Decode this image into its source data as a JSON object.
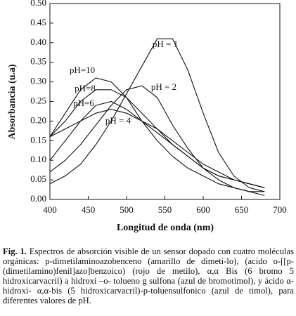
{
  "chart_data": {
    "type": "line",
    "x_label": "Longitud de onda (nm)",
    "y_label": "Absorbancia (u.a)",
    "x": [
      400,
      420,
      440,
      460,
      480,
      500,
      520,
      540,
      560,
      580,
      600,
      620,
      640,
      660,
      680
    ],
    "series": [
      {
        "name": "pH = 1",
        "color": "#111111",
        "values": [
          0.04,
          0.06,
          0.09,
          0.14,
          0.2,
          0.27,
          0.34,
          0.41,
          0.41,
          0.33,
          0.22,
          0.12,
          0.06,
          0.03,
          0.02
        ]
      },
      {
        "name": "pH = 2",
        "color": "#111111",
        "values": [
          0.07,
          0.1,
          0.14,
          0.19,
          0.24,
          0.28,
          0.29,
          0.26,
          0.19,
          0.13,
          0.08,
          0.05,
          0.03,
          0.02,
          0.01
        ]
      },
      {
        "name": "pH=10",
        "color": "#111111",
        "values": [
          0.16,
          0.22,
          0.28,
          0.31,
          0.3,
          0.26,
          0.2,
          0.15,
          0.11,
          0.08,
          0.06,
          0.04,
          0.03,
          0.02,
          0.02
        ]
      },
      {
        "name": "pH=8",
        "color": "#111111",
        "values": [
          0.16,
          0.2,
          0.25,
          0.28,
          0.28,
          0.26,
          0.22,
          0.18,
          0.14,
          0.11,
          0.08,
          0.06,
          0.05,
          0.04,
          0.03
        ]
      },
      {
        "name": "pH=6",
        "color": "#111111",
        "values": [
          0.1,
          0.15,
          0.2,
          0.24,
          0.25,
          0.23,
          0.2,
          0.17,
          0.14,
          0.11,
          0.08,
          0.06,
          0.05,
          0.04,
          0.03
        ]
      },
      {
        "name": "pH = 4",
        "color": "#111111",
        "values": [
          0.16,
          0.18,
          0.2,
          0.22,
          0.23,
          0.22,
          0.2,
          0.18,
          0.15,
          0.12,
          0.09,
          0.07,
          0.05,
          0.04,
          0.03
        ]
      }
    ],
    "xlim": [
      400,
      700
    ],
    "xticks": [
      400,
      450,
      500,
      550,
      600,
      650,
      700
    ],
    "ylim": [
      0,
      0.5
    ],
    "yticks": [
      {
        "value": 0,
        "label": "0.00"
      },
      {
        "value": 0.05,
        "label": "0.05"
      },
      {
        "value": 0.1,
        "label": "0.10"
      },
      {
        "value": 0.15,
        "label": "0.15"
      },
      {
        "value": 0.2,
        "label": "0.20"
      },
      {
        "value": 0.25,
        "label": "0.25"
      },
      {
        "value": 0.3,
        "label": "0.30"
      },
      {
        "value": 0.35,
        "label": "0.35"
      },
      {
        "value": 0.4,
        "label": "0.40"
      },
      {
        "value": 0.45,
        "label": "0.45"
      },
      {
        "value": 0.5,
        "label": "0.50"
      }
    ],
    "grid": false
  },
  "caption": {
    "label": "Fig. 1.",
    "text": "Espectros de absorción visible de un sensor dopado con cuatro moléculas orgánicas: p-dimetilaminoazobenceno (amarillo de dimeti-lo), (acido o-[[p-(dimetilamino)fenil]azo]benzoico) (rojo de metilo), α,α Bis (6 bromo 5 hidroxicarvacril) a hidroxi –o- tolueno g sulfona (azul de bromotimol), y ácido α-hidroxi- α,α-bis (5 hidroxicarvacril)-p-toluensulfonico (azul de timol), para diferentes valores de pH."
  }
}
